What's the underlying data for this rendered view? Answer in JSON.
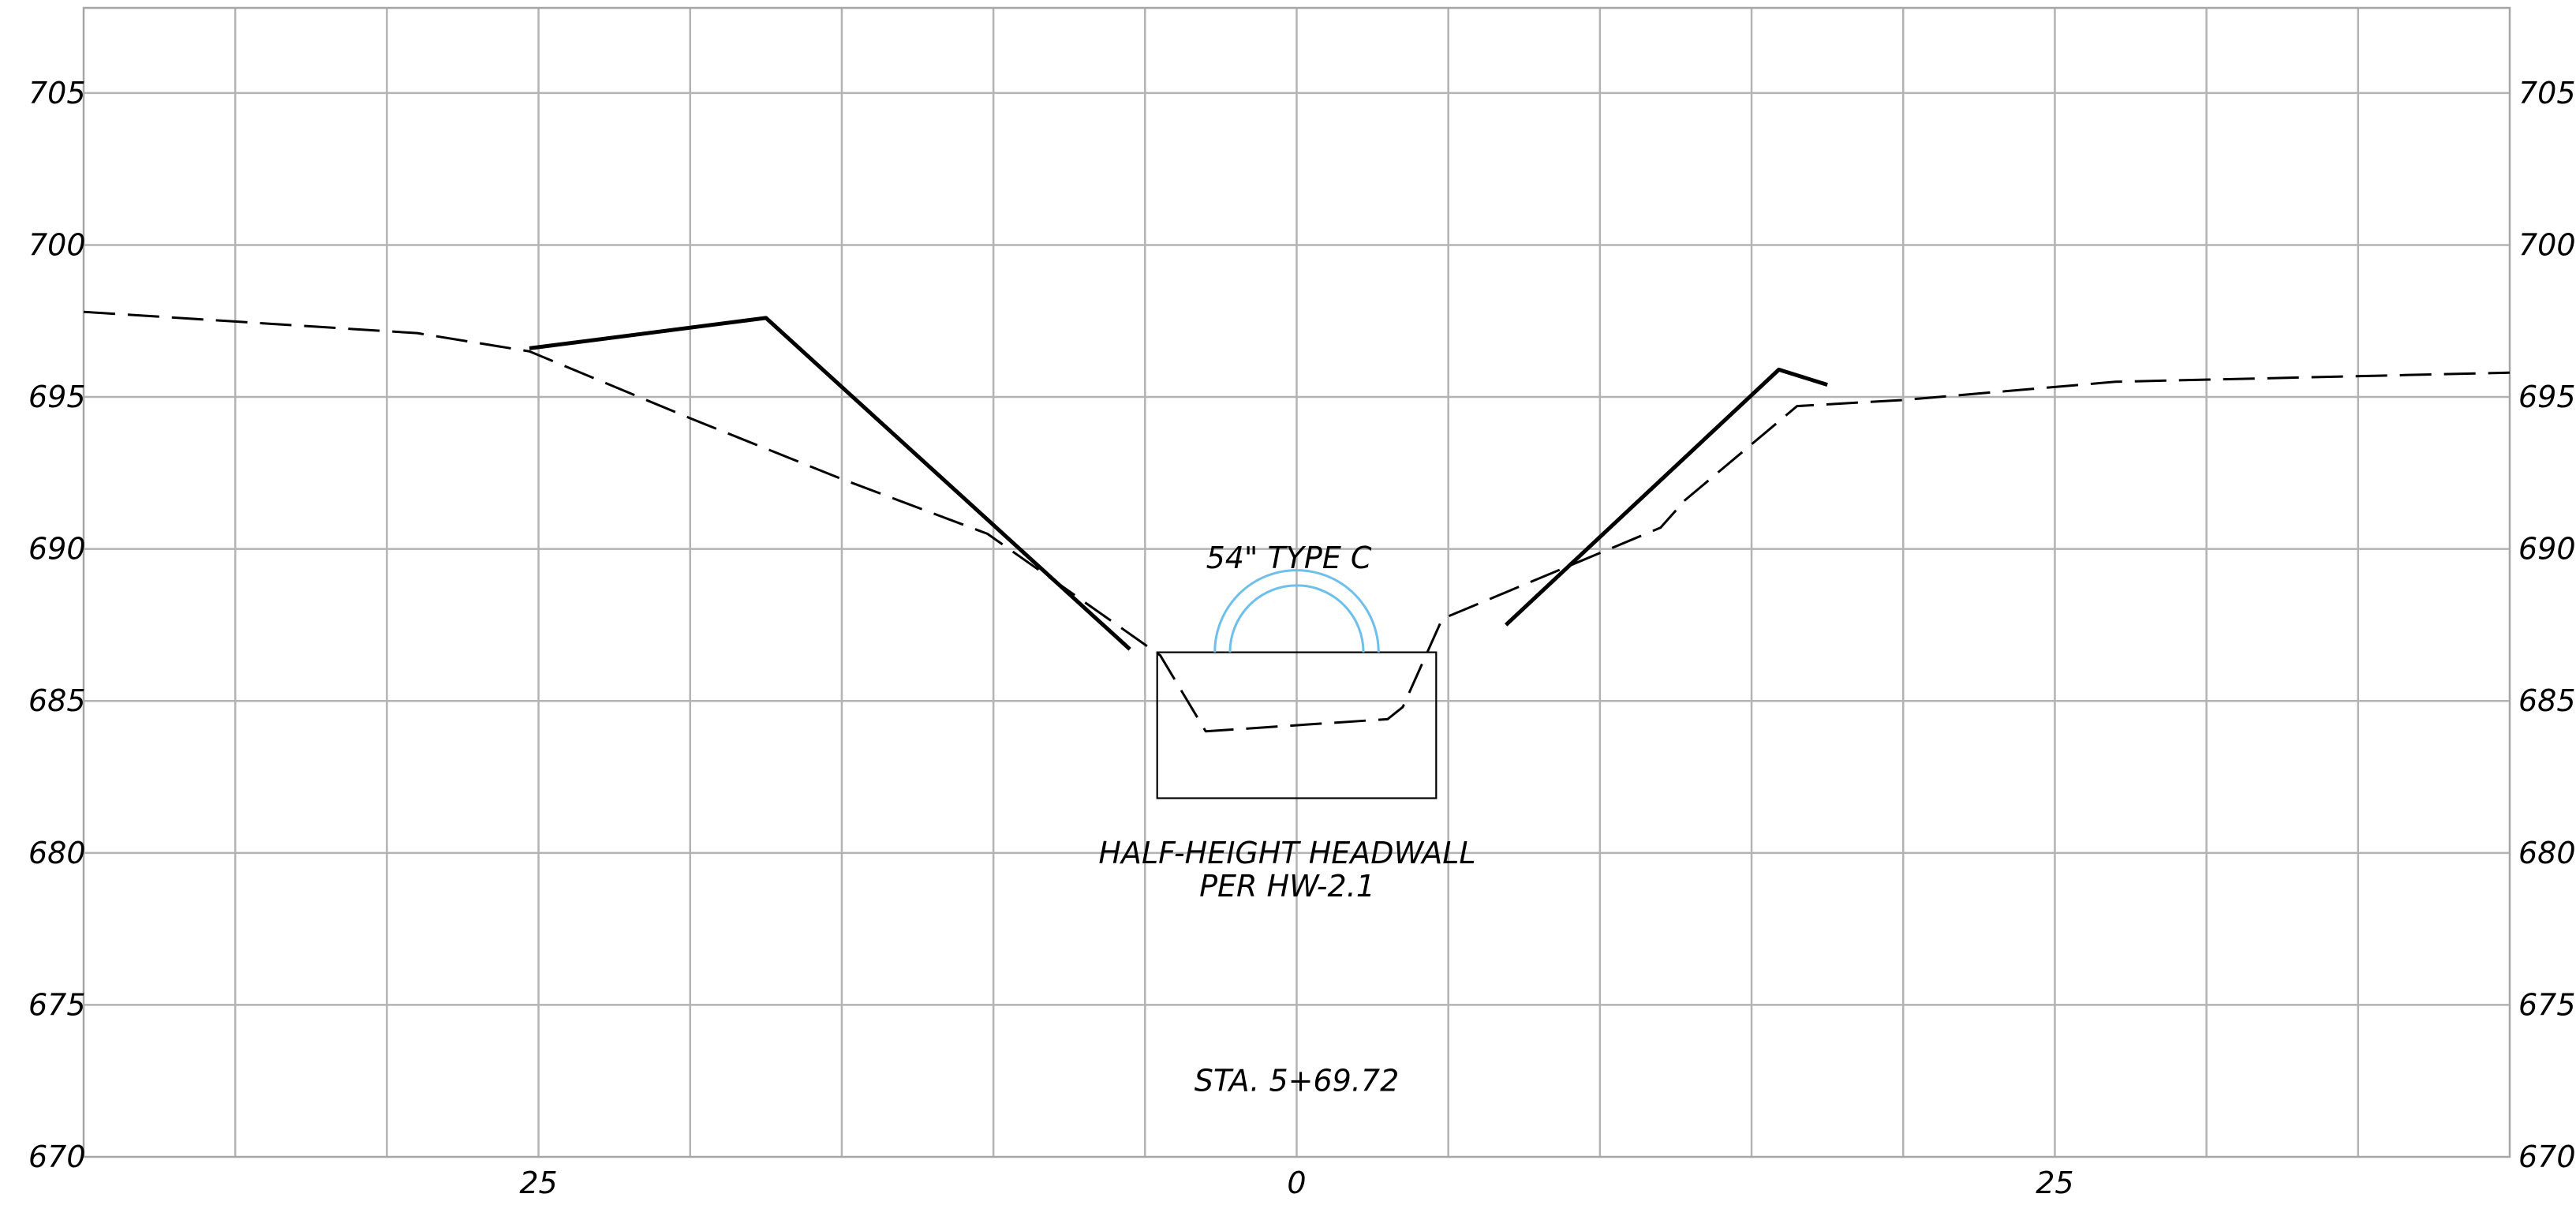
{
  "chart_data": {
    "type": "cross-section",
    "x_ticks": [
      {
        "value": -25,
        "label": "25"
      },
      {
        "value": 0,
        "label": "0"
      },
      {
        "value": 25,
        "label": "25"
      }
    ],
    "y_ticks": [
      {
        "value": 705,
        "label": "705"
      },
      {
        "value": 700,
        "label": "700"
      },
      {
        "value": 695,
        "label": "695"
      },
      {
        "value": 690,
        "label": "690"
      },
      {
        "value": 685,
        "label": "685"
      },
      {
        "value": 680,
        "label": "680"
      },
      {
        "value": 675,
        "label": "675"
      },
      {
        "value": 670,
        "label": "670"
      }
    ],
    "xlim": [
      -40,
      40
    ],
    "ylim": [
      670,
      707.8
    ],
    "grid_x_step": 5,
    "grid_y_step": 5,
    "existing_ground": [
      [
        -40,
        697.8
      ],
      [
        -29,
        697.1
      ],
      [
        -25.3,
        696.5
      ],
      [
        -20,
        694.3
      ],
      [
        -15,
        692.3
      ],
      [
        -10.2,
        690.5
      ],
      [
        -4.5,
        686.5
      ],
      [
        -3,
        684.0
      ],
      [
        3,
        684.4
      ],
      [
        3.5,
        684.8
      ],
      [
        4.8,
        687.7
      ],
      [
        12,
        690.7
      ],
      [
        12.8,
        691.6
      ],
      [
        16.5,
        694.7
      ],
      [
        20,
        694.9
      ],
      [
        27,
        695.5
      ],
      [
        40,
        695.8
      ]
    ],
    "proposed_left": [
      [
        -25.3,
        696.6
      ],
      [
        -17.5,
        697.6
      ],
      [
        -5.5,
        686.7
      ]
    ],
    "proposed_right": [
      [
        6.9,
        687.5
      ],
      [
        15.9,
        695.9
      ],
      [
        17.5,
        695.4
      ]
    ],
    "pipe": {
      "label": "54\" TYPE C",
      "center_x": 0,
      "invert": 686.6,
      "outer_radius": 2.7,
      "inner_radius": 2.2,
      "color": "#6ec0ea"
    },
    "headwall": {
      "label_line1": "HALF-HEIGHT HEADWALL",
      "label_line2": "PER HW-2.1",
      "x1": -4.6,
      "x2": 4.6,
      "y_top": 686.6,
      "y_bottom": 681.8
    },
    "station_label": "STA. 5+69.72"
  }
}
